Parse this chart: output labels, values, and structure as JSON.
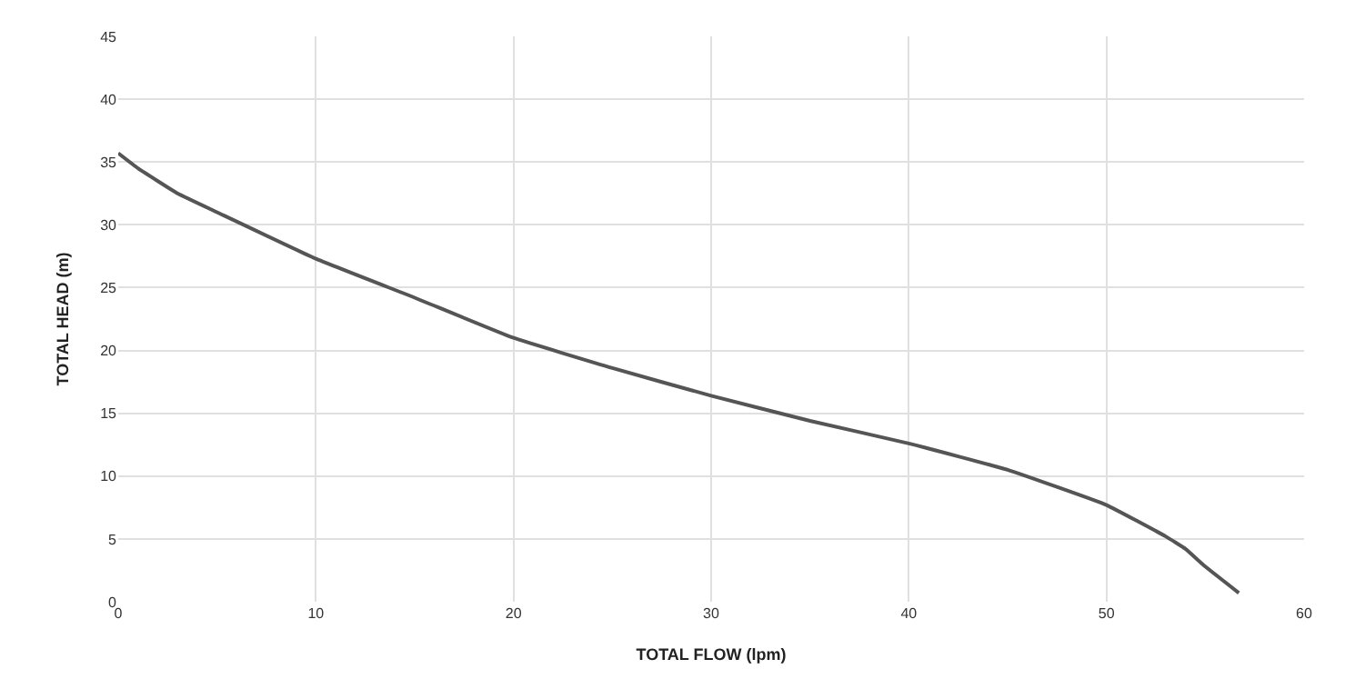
{
  "chart_data": {
    "type": "line",
    "xlabel": "TOTAL FLOW (lpm)",
    "ylabel": "TOTAL HEAD (m)",
    "x": [
      0,
      1,
      3,
      5,
      10,
      15,
      20,
      25,
      30,
      35,
      40,
      45,
      50,
      53,
      54,
      55,
      56.7
    ],
    "series": [
      {
        "color": "#555555",
        "values": [
          35.7,
          34.5,
          32.5,
          31,
          27.3,
          24.2,
          21,
          18.6,
          16.4,
          14.4,
          12.6,
          10.5,
          7.7,
          5.2,
          4.2,
          2.8,
          0.7
        ]
      }
    ],
    "xlim": [
      0,
      60
    ],
    "xticks": [
      0,
      10,
      20,
      30,
      40,
      50,
      60
    ],
    "ylim": [
      0,
      45
    ],
    "yticks": [
      0,
      5,
      10,
      15,
      20,
      25,
      30,
      35,
      40,
      45
    ],
    "grid": true,
    "legend": false,
    "marker": "none",
    "line_style": "solid"
  }
}
